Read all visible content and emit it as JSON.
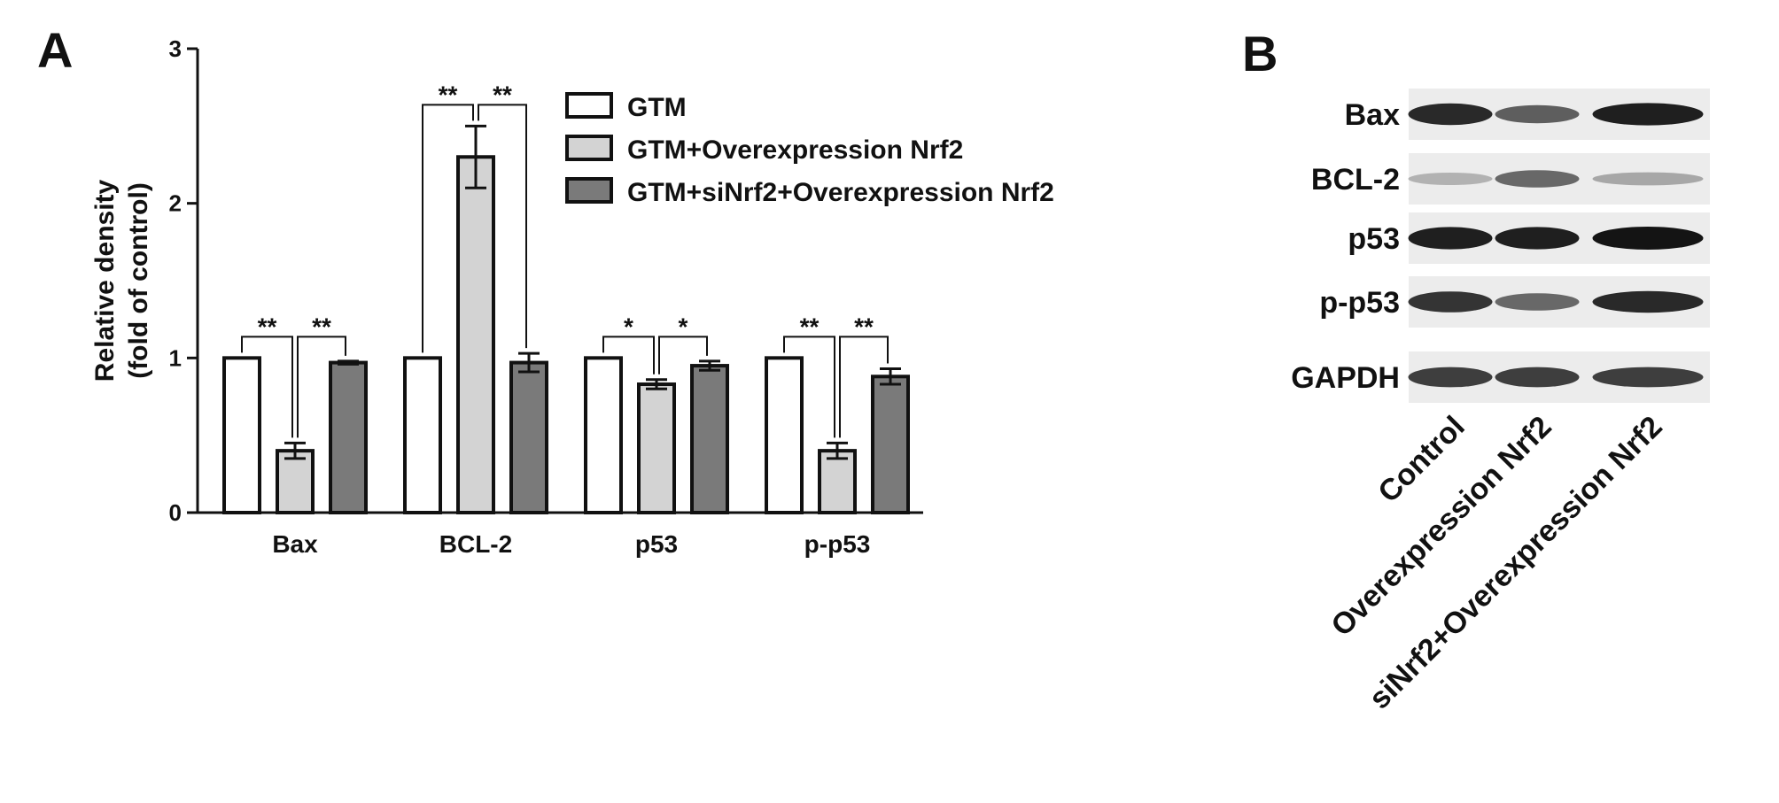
{
  "panels": {
    "a_label": "A",
    "b_label": "B"
  },
  "chart_data": {
    "type": "bar",
    "title": "",
    "xlabel": "",
    "ylabel": "Relative density\n(fold of control)",
    "ylim": [
      0,
      3
    ],
    "yticks": [
      0,
      1,
      2,
      3
    ],
    "grid": false,
    "legend_position": "top-right",
    "categories": [
      "Bax",
      "BCL-2",
      "p53",
      "p-p53"
    ],
    "series": [
      {
        "name": "GTM",
        "values": [
          1.0,
          1.0,
          1.0,
          1.0
        ],
        "errors": [
          0,
          0,
          0,
          0
        ],
        "color": "#ffffff"
      },
      {
        "name": "GTM+Overexpression Nrf2",
        "values": [
          0.4,
          2.3,
          0.83,
          0.4
        ],
        "errors": [
          0.05,
          0.2,
          0.03,
          0.05
        ],
        "color": "#d3d3d3"
      },
      {
        "name": "GTM+siNrf2+Overexpression Nrf2",
        "values": [
          0.97,
          0.97,
          0.95,
          0.88
        ],
        "errors": [
          0.01,
          0.06,
          0.03,
          0.05
        ],
        "color": "#7a7a7a"
      }
    ],
    "significance": [
      {
        "category": 0,
        "from": 0,
        "to": 1,
        "label": "**"
      },
      {
        "category": 0,
        "from": 1,
        "to": 2,
        "label": "**"
      },
      {
        "category": 1,
        "from": 0,
        "to": 1,
        "label": "**"
      },
      {
        "category": 1,
        "from": 1,
        "to": 2,
        "label": "**"
      },
      {
        "category": 2,
        "from": 0,
        "to": 1,
        "label": "*"
      },
      {
        "category": 2,
        "from": 1,
        "to": 2,
        "label": "*"
      },
      {
        "category": 3,
        "from": 0,
        "to": 1,
        "label": "**"
      },
      {
        "category": 3,
        "from": 1,
        "to": 2,
        "label": "**"
      }
    ]
  },
  "blot": {
    "rows": [
      "Bax",
      "BCL-2",
      "p53",
      "p-p53",
      "GAPDH"
    ],
    "lanes": [
      "Control",
      "Overexpression Nrf2",
      "siNrf2+Overexpression Nrf2"
    ],
    "band_intensity": [
      [
        0.9,
        0.65,
        0.95
      ],
      [
        0.25,
        0.6,
        0.3
      ],
      [
        0.95,
        0.95,
        1.0
      ],
      [
        0.85,
        0.6,
        0.9
      ],
      [
        0.8,
        0.8,
        0.8
      ]
    ]
  }
}
